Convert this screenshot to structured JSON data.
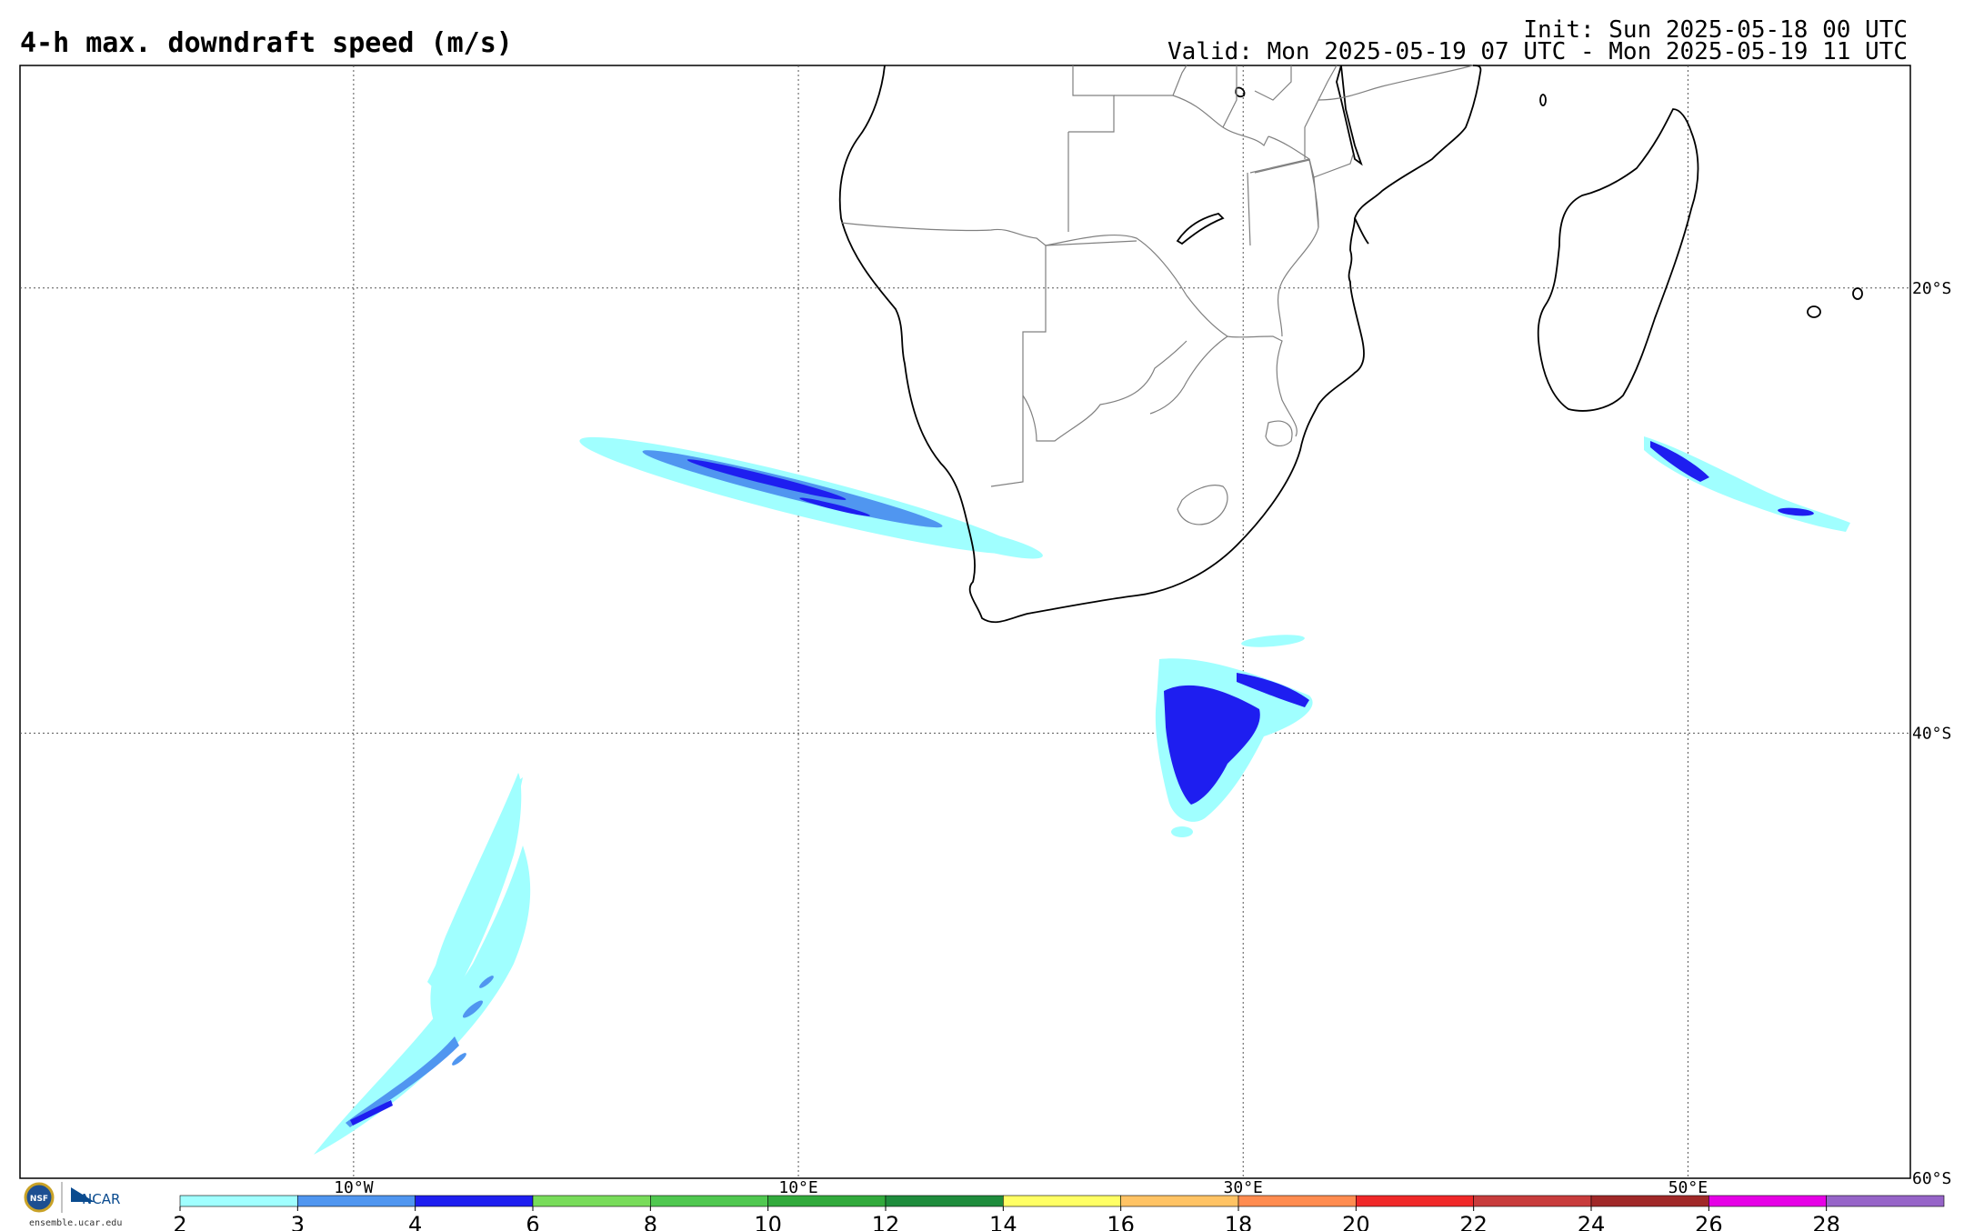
{
  "header": {
    "title": "4-h max. downdraft speed (m/s)",
    "init": "Init: Sun 2025-05-18 00 UTC",
    "valid": "Valid: Mon 2025-05-19 07 UTC - Mon 2025-05-19 11 UTC"
  },
  "map": {
    "lon_range": [
      -25,
      60
    ],
    "lat_range": [
      -60,
      -10
    ],
    "lon_labels": [
      "10°W",
      "10°E",
      "30°E",
      "50°E"
    ],
    "lon_values": [
      -10,
      10,
      30,
      50
    ],
    "lat_labels": [
      "20°S",
      "40°S",
      "60°S"
    ],
    "lat_values": [
      -20,
      -40,
      -60
    ],
    "gridlines": "dotted",
    "coastline_color": "#000000",
    "border_color": "#808080"
  },
  "colorbar": {
    "ticks": [
      "2",
      "3",
      "4",
      "6",
      "8",
      "10",
      "12",
      "14",
      "16",
      "18",
      "20",
      "22",
      "24",
      "26",
      "28"
    ],
    "colors": [
      "#a0ffff",
      "#5096f0",
      "#1e1ef0",
      "#78dc5a",
      "#50c850",
      "#32aa3c",
      "#1e8c3c",
      "#ffff64",
      "#ffc364",
      "#ff8c50",
      "#f02828",
      "#c83c3c",
      "#a02828",
      "#e600e6",
      "#9664c8"
    ]
  },
  "logo": {
    "nsf": "NSF",
    "ncar": "NCAR",
    "site": "ensemble.ucar.edu"
  }
}
